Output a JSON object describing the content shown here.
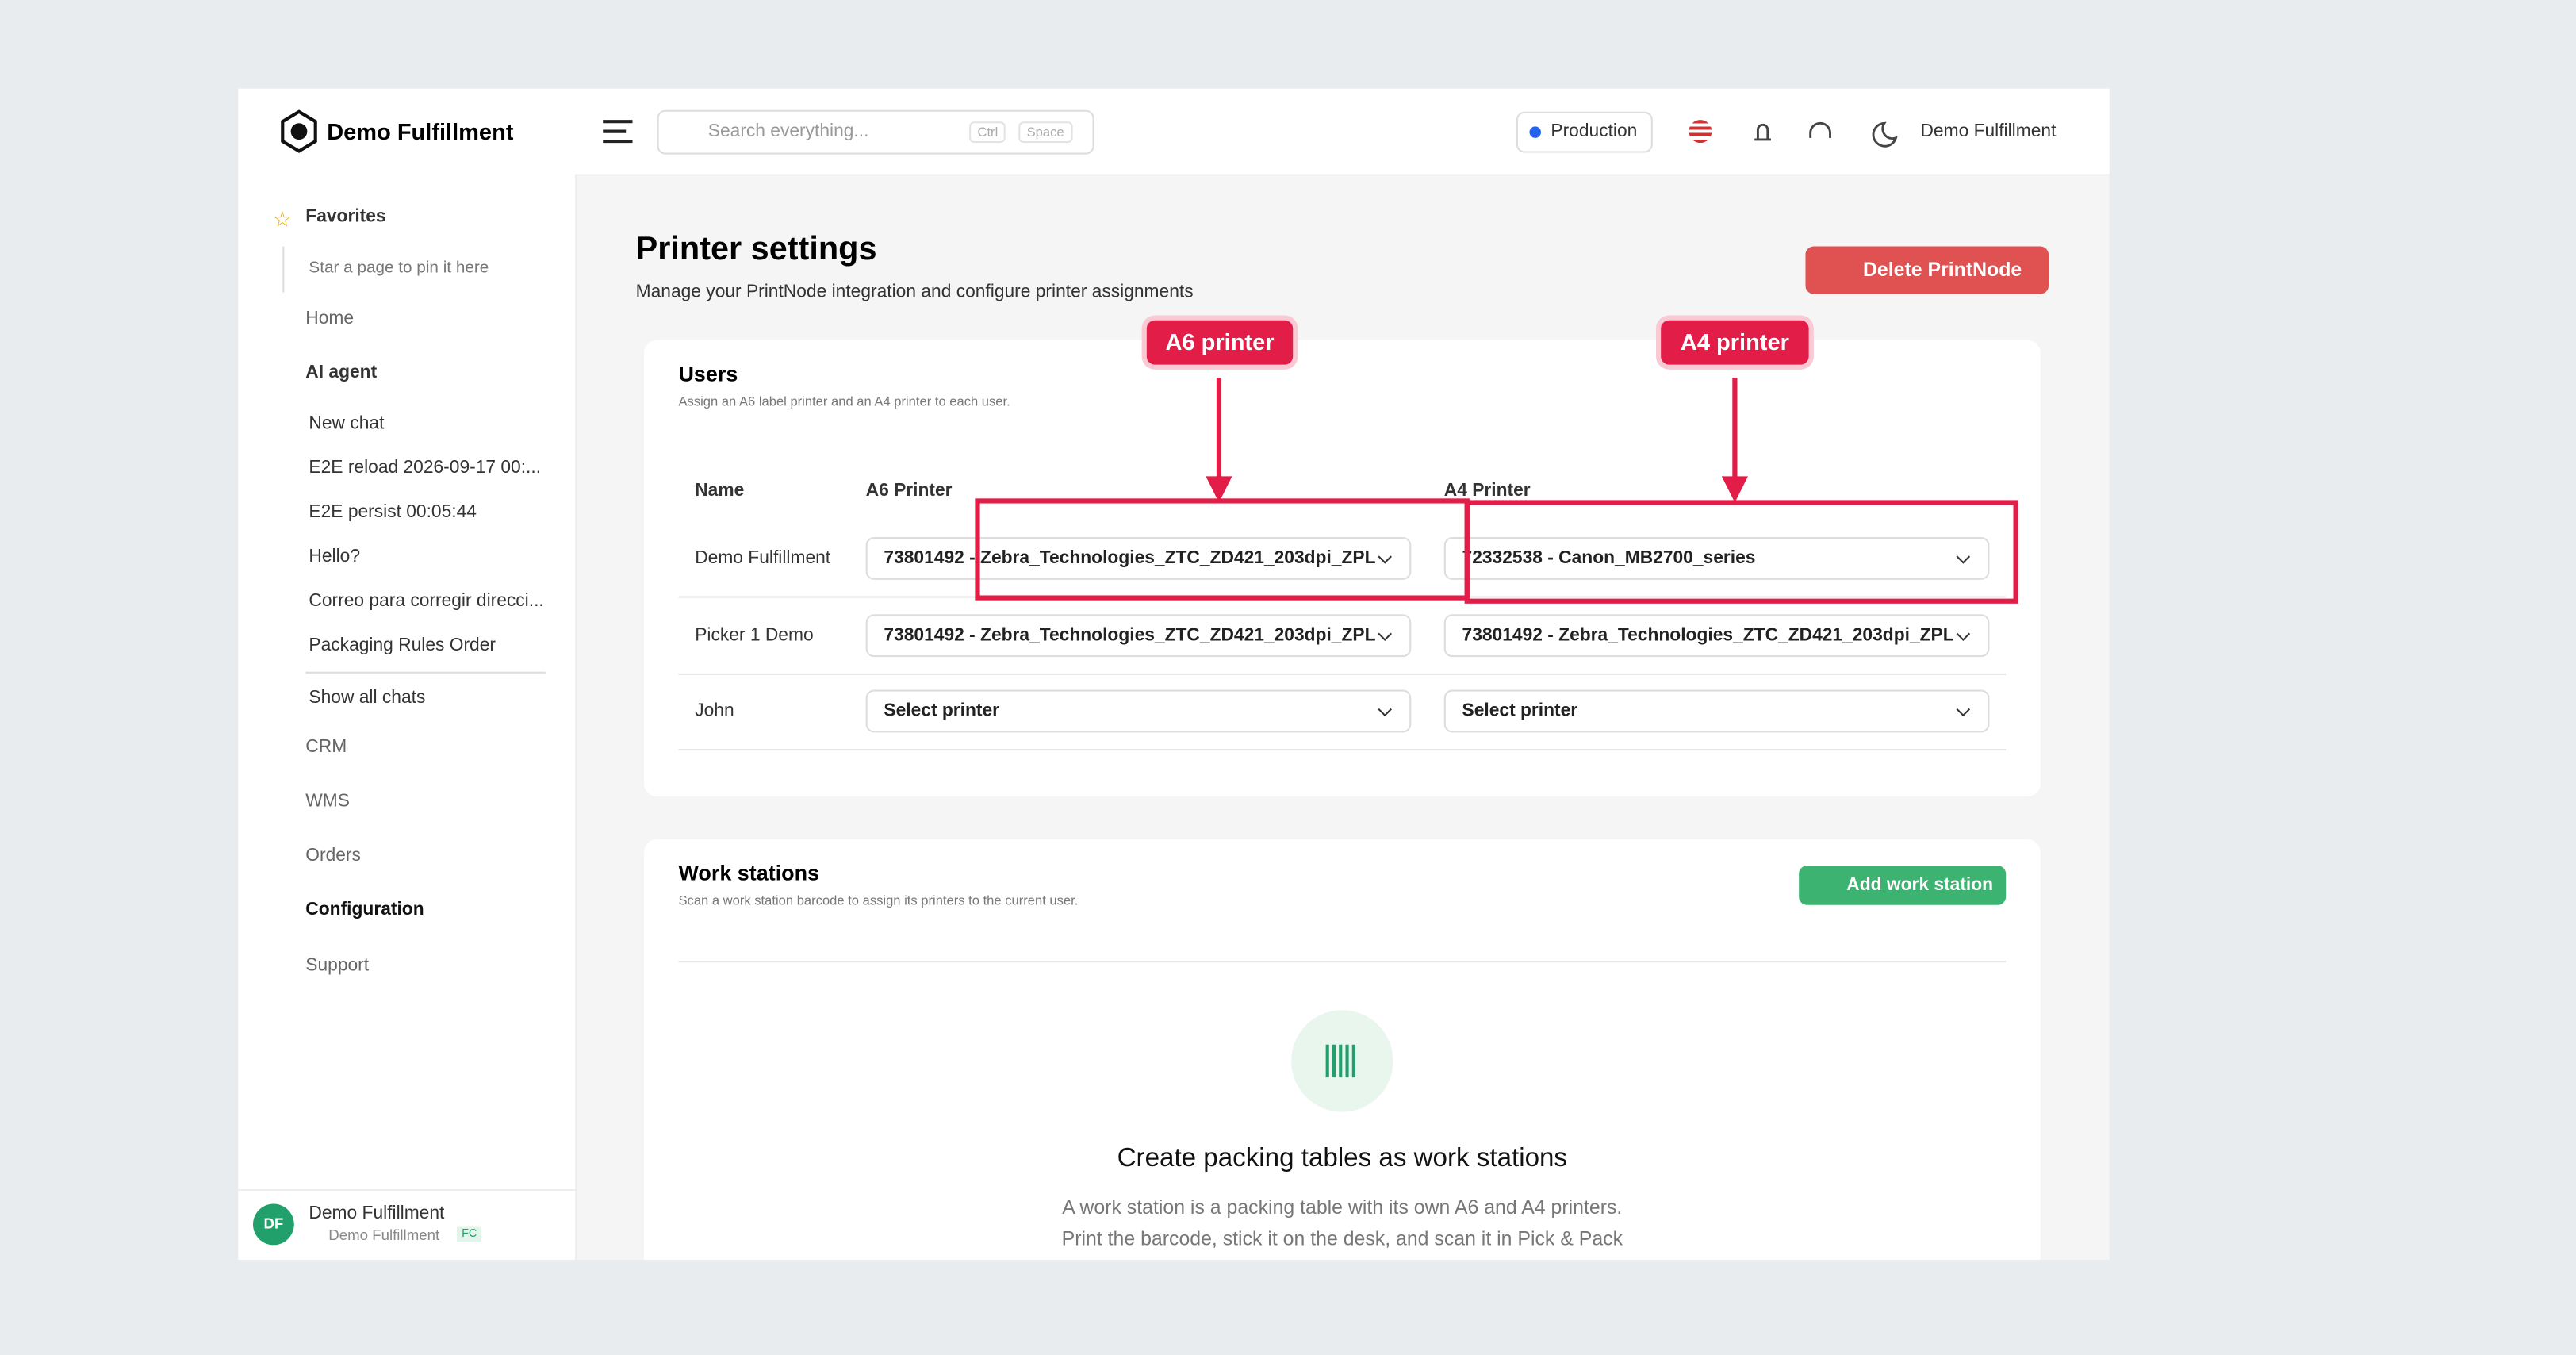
{
  "header": {
    "brand": "Demo Fulfillment",
    "search_placeholder": "Search everything...",
    "shortcut_keys": [
      "Ctrl",
      "Space"
    ],
    "environment": "Production",
    "user": "Demo Fulfillment"
  },
  "sidebar": {
    "favorites": {
      "label": "Favorites",
      "empty": "Star a page to pin it here"
    },
    "home": "Home",
    "ai_agent": {
      "label": "AI agent",
      "chats": [
        "New chat",
        "E2E reload 2026-09-17 00:...",
        "E2E persist 00:05:44",
        "Hello?",
        "Correo para corregir direcci...",
        "Packaging Rules Order"
      ],
      "show_all": "Show all chats"
    },
    "items": [
      "CRM",
      "WMS",
      "Orders",
      "Configuration",
      "Support"
    ],
    "account": {
      "initials": "DF",
      "name": "Demo Fulfillment",
      "org": "Demo Fulfillment",
      "badge": "FC"
    }
  },
  "page": {
    "title": "Printer settings",
    "subtitle": "Manage your PrintNode integration and configure printer assignments",
    "delete_button": "Delete PrintNode"
  },
  "users": {
    "title": "Users",
    "subtitle": "Assign an A6 label printer and an A4 printer to each user.",
    "columns": [
      "Name",
      "A6 Printer",
      "A4 Printer"
    ],
    "rows": [
      [
        "Demo Fulfillment",
        "73801492 - Zebra_Technologies_ZTC_ZD421_203dpi_ZPL",
        "72332538 - Canon_MB2700_series"
      ],
      [
        "Picker 1 Demo",
        "73801492 - Zebra_Technologies_ZTC_ZD421_203dpi_ZPL",
        "73801492 - Zebra_Technologies_ZTC_ZD421_203dpi_ZPL"
      ],
      [
        "John",
        "Select printer",
        "Select printer"
      ]
    ]
  },
  "work_stations": {
    "title": "Work stations",
    "subtitle": "Scan a work station barcode to assign its printers to the current user.",
    "add_button": "Add work station",
    "empty_title": "Create packing tables as work stations",
    "empty_lines": [
      "A work station is a packing table with its own A6 and A4 printers.",
      "Print the barcode, stick it on the desk, and scan it in Pick & Pack"
    ]
  },
  "annotations": [
    "A6 printer",
    "A4 printer"
  ]
}
